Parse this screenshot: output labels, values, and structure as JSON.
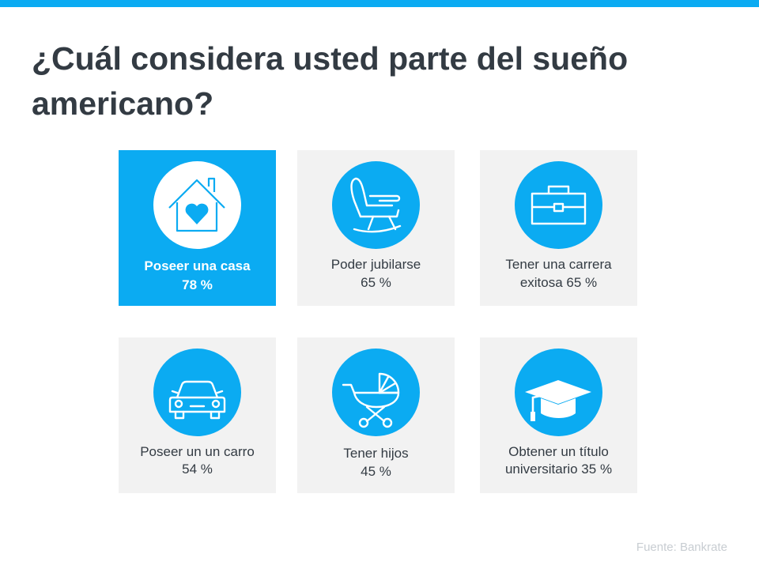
{
  "title": "¿Cuál considera usted parte del sueño americano?",
  "accent_color": "#0babf2",
  "cards": [
    {
      "line1": "Poseer  una casa",
      "line2": "78 %",
      "icon": "house-heart-icon",
      "highlighted": true
    },
    {
      "line1": "Poder jubilarse",
      "line2": "65 %",
      "icon": "rocking-chair-icon",
      "highlighted": false
    },
    {
      "line1": "Tener una carrera",
      "line2": "exitosa 65 %",
      "icon": "briefcase-icon",
      "highlighted": false
    },
    {
      "line1": "Poseer un un carro",
      "line2": "54 %",
      "icon": "car-icon",
      "highlighted": false
    },
    {
      "line1": "Tener hijos",
      "line2": "45 %",
      "icon": "baby-stroller-icon",
      "highlighted": false
    },
    {
      "line1": "Obtener un título",
      "line2": "universitario 35 %",
      "icon": "graduation-cap-icon",
      "highlighted": false
    }
  ],
  "source": "Fuente:  Bankrate"
}
